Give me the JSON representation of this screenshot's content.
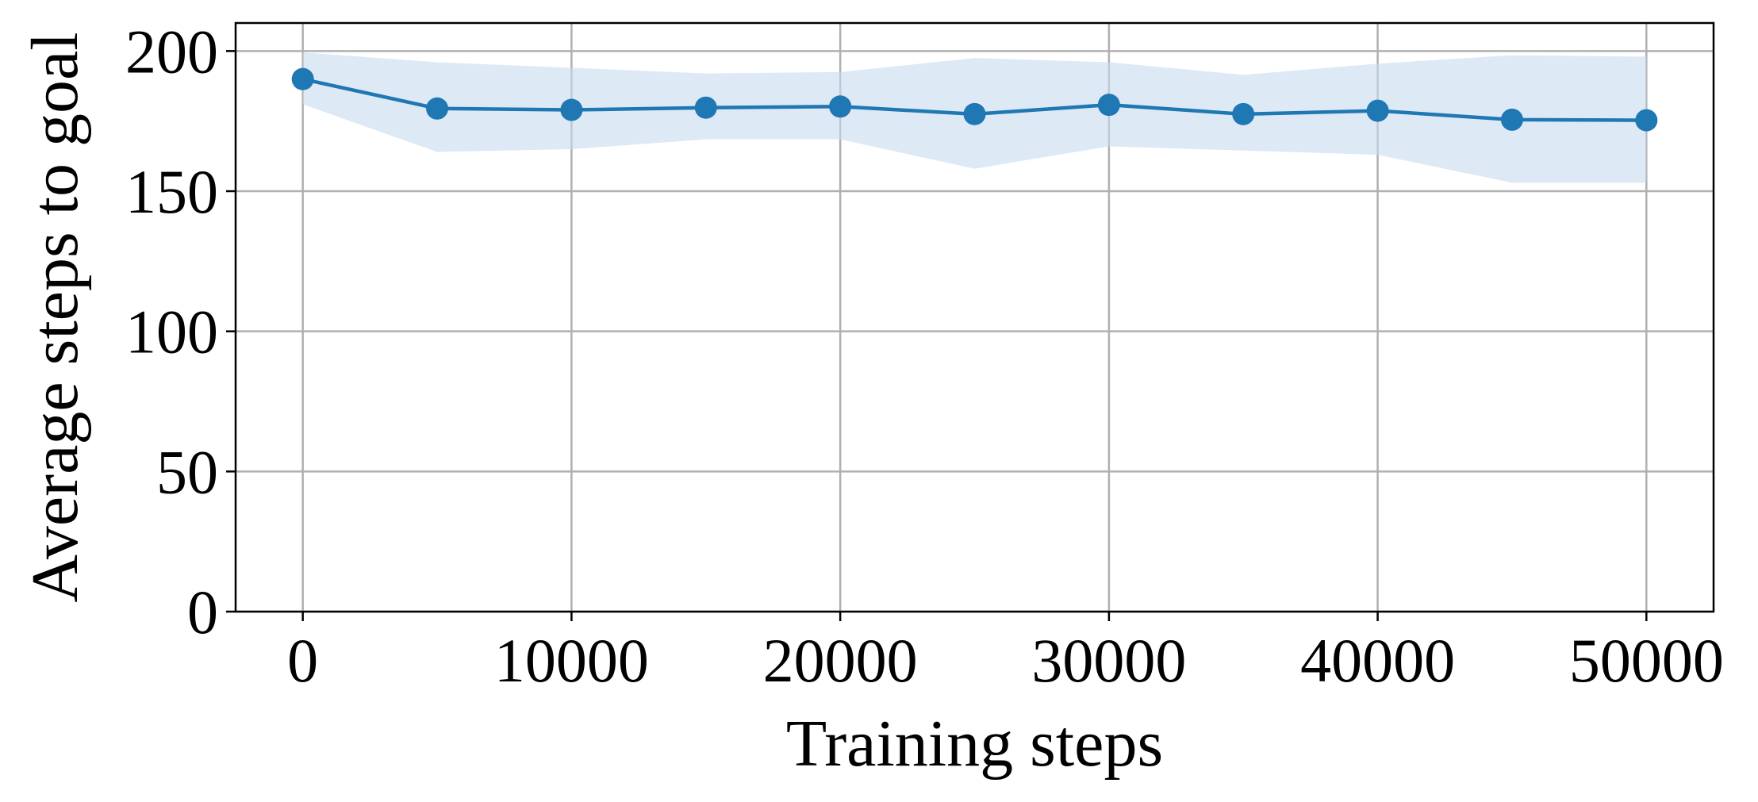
{
  "chart_data": {
    "type": "line",
    "title": "",
    "xlabel": "Training steps",
    "ylabel": "Average steps to goal",
    "xlim": [
      -2500,
      52500
    ],
    "ylim": [
      0,
      210
    ],
    "xticks": [
      0,
      10000,
      20000,
      30000,
      40000,
      50000
    ],
    "xtick_labels": [
      "0",
      "10000",
      "20000",
      "30000",
      "40000",
      "50000"
    ],
    "yticks": [
      0,
      50,
      100,
      150,
      200
    ],
    "ytick_labels": [
      "0",
      "50",
      "100",
      "150",
      "200"
    ],
    "grid": true,
    "legend": "none",
    "colors": {
      "line": "#1f77b4",
      "band": "#c6dbef"
    },
    "series": [
      {
        "x": [
          0,
          5000,
          10000,
          15000,
          20000,
          25000,
          30000,
          35000,
          40000,
          45000,
          50000
        ],
        "y": [
          190,
          179.5,
          179,
          179.8,
          180.2,
          177.5,
          180.8,
          177.5,
          178.7,
          175.5,
          175.3
        ],
        "y_lower": [
          181,
          164,
          165,
          168.5,
          168.5,
          158,
          166,
          164.5,
          163,
          153,
          153
        ],
        "y_upper": [
          199.5,
          196,
          194,
          192,
          192.5,
          197.5,
          196,
          191.5,
          195.5,
          198.5,
          198
        ]
      }
    ]
  }
}
